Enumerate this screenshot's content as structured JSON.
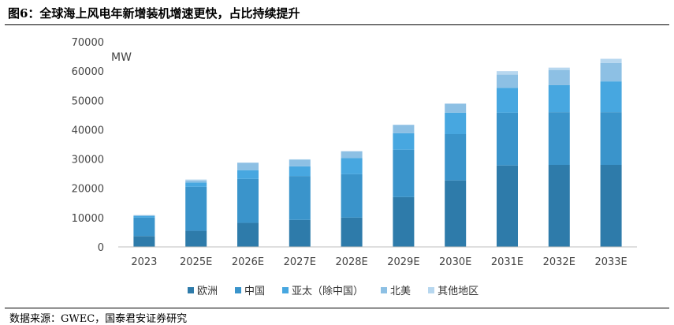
{
  "title": "图6：全球海上风电年新增装机增速更快，占比持续提升",
  "source": "数据来源：GWEC，国泰君安证券研究",
  "chart_data": {
    "type": "bar",
    "stacked": true,
    "unit_label": "MW",
    "ylim": [
      0,
      70000
    ],
    "yticks": [
      0,
      10000,
      20000,
      30000,
      40000,
      50000,
      60000,
      70000
    ],
    "ytick_labels": [
      "0",
      "10000",
      "20000",
      "30000",
      "40000",
      "50000",
      "60000",
      "70000"
    ],
    "grid": false,
    "legend_position": "bottom",
    "categories": [
      "2023",
      "2025E",
      "2026E",
      "2027E",
      "2028E",
      "2029E",
      "2030E",
      "2031E",
      "2032E",
      "2033E"
    ],
    "series": [
      {
        "name": "欧洲",
        "color": "#2E7BAA",
        "values": [
          3700,
          5500,
          8200,
          9200,
          10000,
          17000,
          22700,
          27800,
          28000,
          28000
        ]
      },
      {
        "name": "中国",
        "color": "#3A94CB",
        "values": [
          6300,
          15000,
          15000,
          15000,
          14800,
          16200,
          15800,
          18000,
          18000,
          18000
        ]
      },
      {
        "name": "亚太（除中国）",
        "color": "#47A7E0",
        "values": [
          500,
          1500,
          3000,
          3300,
          5500,
          5600,
          7300,
          8500,
          9200,
          10500
        ]
      },
      {
        "name": "北美",
        "color": "#8DC0E4",
        "values": [
          300,
          700,
          2500,
          2300,
          2300,
          2800,
          3000,
          4500,
          5200,
          6300
        ]
      },
      {
        "name": "其他地区",
        "color": "#B7D7EF",
        "values": [
          100,
          300,
          100,
          100,
          100,
          100,
          200,
          1200,
          800,
          1400
        ]
      }
    ]
  }
}
